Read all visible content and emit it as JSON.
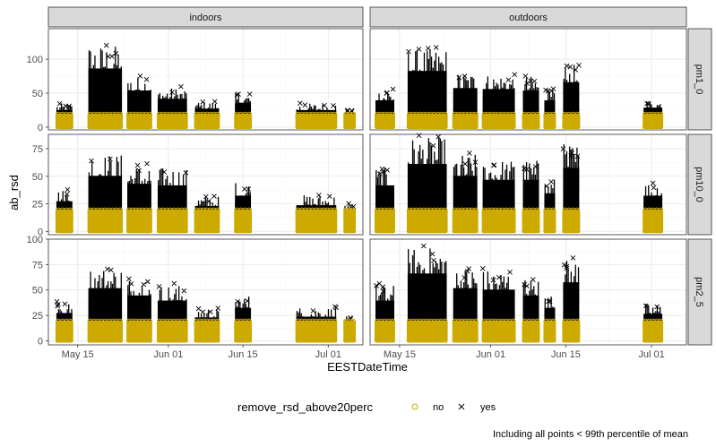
{
  "chart_data": {
    "type": "scatter",
    "xlabel": "EESTDateTime",
    "ylabel": "ab_rsd",
    "caption": "Including all points < 99th percentile of mean",
    "x_ticks": [
      {
        "label": "May 15",
        "day": 15
      },
      {
        "label": "Jun 01",
        "day": 32
      },
      {
        "label": "Jun 15",
        "day": 46
      },
      {
        "label": "Jul 01",
        "day": 62
      }
    ],
    "xlim_day": [
      9.5,
      68.5
    ],
    "col_facets": [
      "indoors",
      "outdoors"
    ],
    "row_facets": [
      {
        "label": "pm1_0",
        "ylim": [
          -4,
          145
        ],
        "yticks": [
          0,
          50,
          100
        ]
      },
      {
        "label": "pm10_0",
        "ylim": [
          -3,
          88
        ],
        "yticks": [
          0,
          25,
          50,
          75
        ]
      },
      {
        "label": "pm2_5",
        "ylim": [
          -4,
          100
        ],
        "yticks": [
          0,
          25,
          50,
          75,
          100
        ]
      }
    ],
    "legend": {
      "title": "remove_rsd_above20perc",
      "placement": "bottom",
      "entries": [
        {
          "label": "no",
          "shape": "circle",
          "color": "#CCAA00"
        },
        {
          "label": "yes",
          "shape": "cross",
          "color": "#000000"
        }
      ]
    },
    "series_colors": {
      "no": "#CCAA00",
      "yes": "#000000"
    },
    "segments": {
      "indoors": [
        {
          "start": 11.0,
          "end": 14.0,
          "peak": {
            "pm1_0": 35,
            "pm10_0": 38,
            "pm2_5": 38
          }
        },
        {
          "start": 17.0,
          "end": 23.3,
          "peak": {
            "pm1_0": 120,
            "pm10_0": 70,
            "pm2_5": 72
          }
        },
        {
          "start": 24.3,
          "end": 28.8,
          "peak": {
            "pm1_0": 75,
            "pm10_0": 60,
            "pm2_5": 62
          }
        },
        {
          "start": 30.0,
          "end": 35.5,
          "peak": {
            "pm1_0": 58,
            "pm10_0": 58,
            "pm2_5": 55
          }
        },
        {
          "start": 37.0,
          "end": 41.5,
          "peak": {
            "pm1_0": 38,
            "pm10_0": 32,
            "pm2_5": 32
          }
        },
        {
          "start": 44.5,
          "end": 47.5,
          "peak": {
            "pm1_0": 50,
            "pm10_0": 45,
            "pm2_5": 45
          }
        },
        {
          "start": 56.0,
          "end": 63.5,
          "peak": {
            "pm1_0": 35,
            "pm10_0": 33,
            "pm2_5": 33
          }
        },
        {
          "start": 65.0,
          "end": 67.0,
          "peak": {
            "pm1_0": 25,
            "pm10_0": 25,
            "pm2_5": 25
          }
        }
      ],
      "outdoors": [
        {
          "start": 10.5,
          "end": 14.0,
          "peak": {
            "pm1_0": 55,
            "pm10_0": 58,
            "pm2_5": 55
          }
        },
        {
          "start": 16.5,
          "end": 23.8,
          "peak": {
            "pm1_0": 115,
            "pm10_0": 85,
            "pm2_5": 92
          }
        },
        {
          "start": 25.0,
          "end": 29.5,
          "peak": {
            "pm1_0": 80,
            "pm10_0": 70,
            "pm2_5": 72
          }
        },
        {
          "start": 30.5,
          "end": 36.5,
          "peak": {
            "pm1_0": 78,
            "pm10_0": 65,
            "pm2_5": 70
          }
        },
        {
          "start": 38.0,
          "end": 41.0,
          "peak": {
            "pm1_0": 75,
            "pm10_0": 65,
            "pm2_5": 62
          }
        },
        {
          "start": 42.0,
          "end": 44.0,
          "peak": {
            "pm1_0": 55,
            "pm10_0": 48,
            "pm2_5": 45
          }
        },
        {
          "start": 45.5,
          "end": 48.5,
          "peak": {
            "pm1_0": 92,
            "pm10_0": 80,
            "pm2_5": 80
          }
        },
        {
          "start": 60.5,
          "end": 64.0,
          "peak": {
            "pm1_0": 40,
            "pm10_0": 45,
            "pm2_5": 37
          }
        }
      ]
    },
    "no_range": [
      0,
      20
    ]
  }
}
